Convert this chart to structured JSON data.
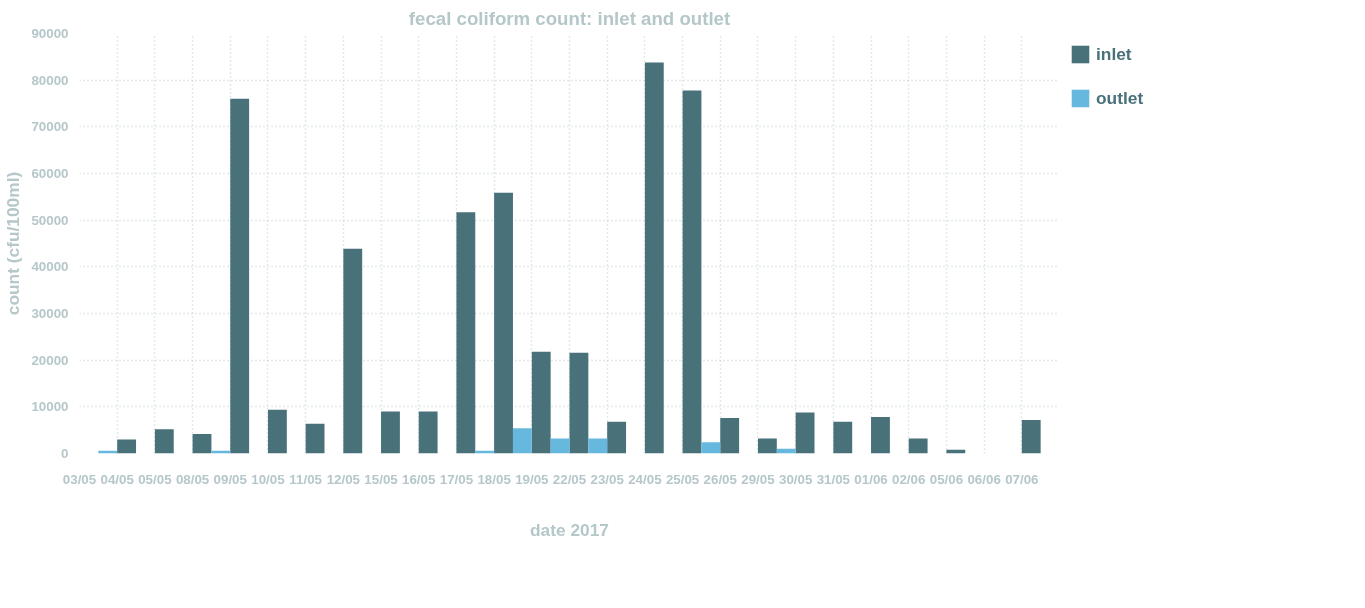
{
  "chart_data": {
    "type": "bar",
    "title": "fecal coliform count: inlet and outlet",
    "xlabel": "date 2017",
    "ylabel": "count (cfu/100ml)",
    "categories": [
      "03/05",
      "04/05",
      "05/05",
      "08/05",
      "09/05",
      "10/05",
      "11/05",
      "12/05",
      "15/05",
      "16/05",
      "17/05",
      "18/05",
      "19/05",
      "22/05",
      "23/05",
      "24/05",
      "25/05",
      "26/05",
      "29/05",
      "30/05",
      "31/05",
      "01/06",
      "02/06",
      "05/06",
      "06/06",
      "07/06"
    ],
    "series": [
      {
        "name": "inlet",
        "color": "#48717a",
        "values": [
          null,
          3000,
          5200,
          4200,
          76000,
          9400,
          6400,
          43900,
          9000,
          9000,
          51700,
          55900,
          21800,
          21600,
          6800,
          83800,
          77800,
          7600,
          3200,
          8800,
          6800,
          7800,
          3200,
          800,
          null,
          7200
        ]
      },
      {
        "name": "outlet",
        "color": "#67b8de",
        "values": [
          null,
          600,
          null,
          null,
          600,
          null,
          null,
          null,
          null,
          null,
          null,
          600,
          5400,
          3200,
          3200,
          null,
          null,
          2400,
          null,
          1000,
          null,
          null,
          null,
          null,
          null,
          null
        ]
      }
    ],
    "ylim": [
      0,
      90000
    ],
    "yticks": [
      0,
      10000,
      20000,
      30000,
      40000,
      50000,
      60000,
      70000,
      80000,
      90000
    ],
    "grid": true,
    "legend": "top right"
  }
}
